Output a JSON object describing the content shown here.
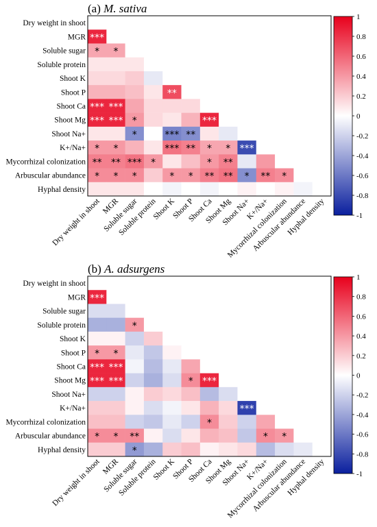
{
  "chart_data": [
    {
      "type": "heatmap",
      "title_prefix": "(a) ",
      "title_species": "M. sativa",
      "variables": [
        "Dry weight in shoot",
        "MGR",
        "Soluble sugar",
        "Soluble protein",
        "Shoot K",
        "Shoot P",
        "Shoot Ca",
        "Shoot Mg",
        "Shoot Na+",
        "K+/Na+",
        "Mycorrhizal colonization",
        "Arbuscular abundance",
        "Hyphal density"
      ],
      "values": [
        [],
        [
          0.85
        ],
        [
          0.35,
          0.35
        ],
        [
          0.1,
          0.1,
          0.1
        ],
        [
          0.15,
          0.15,
          0.2,
          -0.1
        ],
        [
          0.3,
          0.3,
          0.25,
          0.1,
          0.7
        ],
        [
          0.85,
          0.85,
          0.35,
          0.15,
          0.15,
          0.15
        ],
        [
          0.85,
          0.85,
          0.4,
          0.15,
          0.1,
          0.3,
          0.85
        ],
        [
          0.1,
          0.1,
          -0.5,
          0.0,
          -0.55,
          -0.5,
          0.1,
          -0.1
        ],
        [
          0.4,
          0.4,
          0.3,
          0.1,
          0.55,
          0.5,
          0.35,
          0.35,
          -0.8
        ],
        [
          0.5,
          0.5,
          0.55,
          0.4,
          0.1,
          0.25,
          0.4,
          0.5,
          -0.1,
          0.4
        ],
        [
          0.45,
          0.45,
          0.45,
          0.2,
          0.4,
          0.4,
          0.5,
          0.55,
          -0.5,
          0.5,
          0.45
        ],
        [
          0.1,
          0.1,
          0.1,
          0.0,
          -0.05,
          0.0,
          -0.05,
          0.0,
          0.05,
          0.0,
          0.05,
          -0.05
        ]
      ],
      "stars": [
        [],
        [
          "***"
        ],
        [
          "*",
          "*"
        ],
        [
          "",
          "",
          ""
        ],
        [
          "",
          "",
          "",
          ""
        ],
        [
          "",
          "",
          "",
          "",
          "**"
        ],
        [
          "***",
          "***",
          "",
          "",
          "",
          ""
        ],
        [
          "***",
          "***",
          "*",
          "",
          "",
          "",
          "***"
        ],
        [
          "",
          "",
          "*",
          "",
          "***",
          "**",
          "",
          ""
        ],
        [
          "*",
          "*",
          "",
          "",
          "***",
          "**",
          "*",
          "*",
          "***"
        ],
        [
          "**",
          "**",
          "***",
          "*",
          "",
          "",
          "*",
          "**",
          "",
          ""
        ],
        [
          "*",
          "*",
          "*",
          "",
          "*",
          "*",
          "**",
          "**",
          "*",
          "**",
          "*"
        ],
        [
          "",
          "",
          "",
          "",
          "",
          "",
          "",
          "",
          "",
          "",
          "",
          ""
        ]
      ],
      "colorbar": {
        "range": [
          -1,
          1
        ],
        "ticks": [
          "1",
          "0.8",
          "0.6",
          "0.4",
          "0.2",
          "0",
          "-0.2",
          "-0.4",
          "-0.6",
          "-0.8",
          "-1"
        ]
      },
      "colors": {
        "negative": "#0a1f9e",
        "neutral": "#ffffff",
        "positive": "#e8001c"
      }
    },
    {
      "type": "heatmap",
      "title_prefix": "(b) ",
      "title_species": "A. adsurgens",
      "variables": [
        "Dry weight in shoot",
        "MGR",
        "Soluble sugar",
        "Soluble protein",
        "Shoot K",
        "Shoot P",
        "Shoot Ca",
        "Shoot Mg",
        "Shoot Na+",
        "K+/Na+",
        "Mycorrhizal colonization",
        "Arbuscular abundance",
        "Hyphal density"
      ],
      "values": [
        [],
        [
          0.85
        ],
        [
          -0.15,
          -0.15
        ],
        [
          -0.35,
          -0.35,
          0.4
        ],
        [
          0.05,
          0.05,
          -0.2,
          0.2
        ],
        [
          0.4,
          0.4,
          -0.1,
          -0.25,
          0.05
        ],
        [
          0.85,
          0.85,
          -0.05,
          -0.3,
          -0.1,
          0.35
        ],
        [
          0.85,
          0.85,
          -0.2,
          -0.35,
          -0.15,
          0.45,
          0.85
        ],
        [
          -0.2,
          -0.2,
          0.05,
          0.2,
          0.15,
          0.25,
          -0.3,
          -0.15
        ],
        [
          0.2,
          0.2,
          0.05,
          -0.15,
          -0.05,
          0.1,
          0.3,
          0.15,
          -0.85
        ],
        [
          0.25,
          0.25,
          -0.2,
          -0.25,
          -0.1,
          -0.2,
          0.45,
          0.2,
          -0.2,
          0.35
        ],
        [
          0.45,
          0.45,
          0.45,
          0.05,
          -0.15,
          0.1,
          0.3,
          0.25,
          -0.25,
          0.45,
          0.4
        ],
        [
          0.2,
          0.2,
          -0.45,
          -0.35,
          0.2,
          0.25,
          0.05,
          0.1,
          0.15,
          -0.3,
          -0.15,
          -0.1
        ]
      ],
      "stars": [
        [],
        [
          "***"
        ],
        [
          "",
          ""
        ],
        [
          "",
          "",
          "*"
        ],
        [
          "",
          "",
          "",
          ""
        ],
        [
          "*",
          "*",
          "",
          "",
          ""
        ],
        [
          "***",
          "***",
          "",
          "",
          "",
          ""
        ],
        [
          "***",
          "***",
          "",
          "",
          "",
          "*",
          "***"
        ],
        [
          "",
          "",
          "",
          "",
          "",
          "",
          "",
          ""
        ],
        [
          "",
          "",
          "",
          "",
          "",
          "",
          "",
          "",
          "***"
        ],
        [
          "",
          "",
          "",
          "",
          "",
          "",
          "*",
          "",
          "",
          ""
        ],
        [
          "*",
          "*",
          "**",
          "",
          "",
          "",
          "",
          "",
          "",
          "*",
          "*"
        ],
        [
          "",
          "",
          "*",
          "",
          "",
          "",
          "",
          "",
          "",
          "",
          "",
          ""
        ]
      ],
      "colorbar": {
        "range": [
          -1,
          1
        ],
        "ticks": [
          "1",
          "0.8",
          "0.6",
          "0.4",
          "0.2",
          "0",
          "-0.2",
          "-0.4",
          "-0.6",
          "-0.8",
          "-1"
        ]
      },
      "colors": {
        "negative": "#0a1f9e",
        "neutral": "#ffffff",
        "positive": "#e8001c"
      }
    }
  ]
}
